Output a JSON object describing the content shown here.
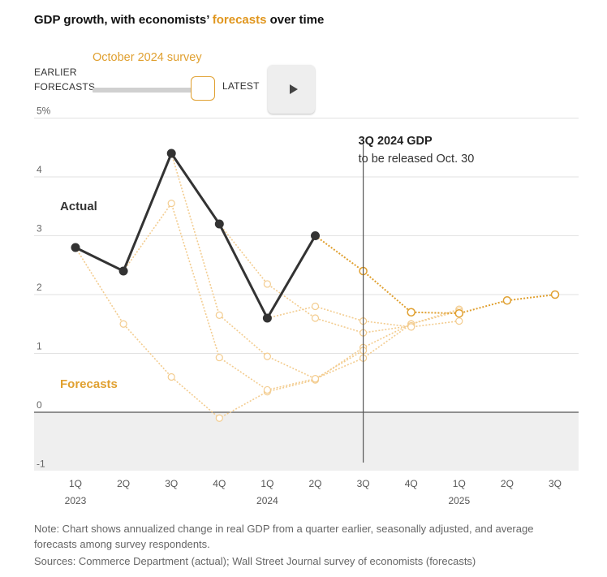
{
  "header": {
    "title_prefix": "GDP growth, with economists’ ",
    "title_highlight": "forecasts",
    "title_suffix": " over time"
  },
  "controls": {
    "survey_label": "October 2024 survey",
    "earlier_label_line1": "EARLIER",
    "earlier_label_line2": "FORECASTS",
    "latest_label": "LATEST",
    "slider_position_fraction": 1.0
  },
  "colors": {
    "actual": "#333333",
    "forecast": "#e0a030",
    "forecast_faded": "#f3cc8f",
    "negative_band": "#efefef",
    "grid": "#e2e2e2"
  },
  "chart_data": {
    "type": "line",
    "y_axis": {
      "min": -1,
      "max": 5,
      "ticks": [
        5,
        4,
        3,
        2,
        1,
        0,
        -1
      ],
      "tick_labels": [
        "5%",
        "4",
        "3",
        "2",
        "1",
        "0",
        "-1"
      ]
    },
    "quarters": [
      "1Q",
      "2Q",
      "3Q",
      "4Q",
      "1Q",
      "2Q",
      "3Q",
      "4Q",
      "1Q",
      "2Q",
      "3Q"
    ],
    "years": [
      {
        "label": "2023",
        "index": 0
      },
      {
        "label": "2024",
        "index": 4
      },
      {
        "label": "2025",
        "index": 8
      }
    ],
    "actual": {
      "label": "Actual",
      "values": [
        2.8,
        2.4,
        4.4,
        3.2,
        1.6,
        3.0
      ]
    },
    "forecasts_label": "Forecasts",
    "current_forecast": {
      "name": "October 2024 survey",
      "start_index": 5,
      "values": [
        3.0,
        2.4,
        1.7,
        1.68,
        1.9,
        2.0
      ]
    },
    "earlier_forecasts": [
      {
        "start_index": 0,
        "values": [
          2.8,
          1.5,
          0.6,
          -0.1,
          0.35,
          0.55,
          1.1,
          1.5,
          1.75
        ]
      },
      {
        "start_index": 1,
        "values": [
          2.4,
          3.55,
          0.93,
          0.38,
          0.57,
          0.92,
          1.5,
          1.72
        ]
      },
      {
        "start_index": 2,
        "values": [
          4.4,
          1.65,
          0.95,
          0.57,
          1.05
        ]
      },
      {
        "start_index": 3,
        "values": [
          3.2,
          2.18,
          1.6,
          1.35,
          1.47
        ]
      },
      {
        "start_index": 4,
        "values": [
          1.6,
          1.8,
          1.55,
          1.45,
          1.55
        ]
      }
    ],
    "annotation": {
      "index": 6,
      "title": "3Q 2024 GDP",
      "subtitle": "to be released Oct. 30"
    }
  },
  "footer": {
    "note": "Note: Chart shows annualized change in real GDP from a quarter earlier, seasonally adjusted, and average forecasts among survey respondents.",
    "sources": "Sources: Commerce Department (actual); Wall Street Journal survey of economists (forecasts)"
  }
}
